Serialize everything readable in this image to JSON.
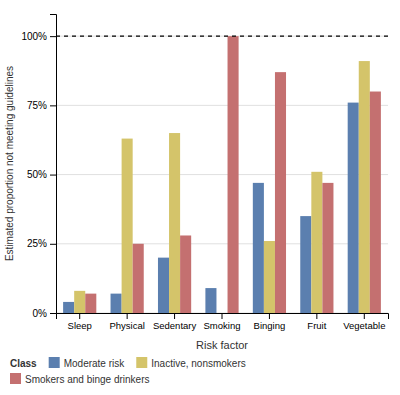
{
  "chart_data": {
    "type": "bar",
    "xlabel": "Risk factor",
    "ylabel": "Estimated proportion not meeting guidelines",
    "legend_title": "Class",
    "categories": [
      "Sleep",
      "Physical",
      "Sedentary",
      "Smoking",
      "Binging",
      "Fruit",
      "Vegetable"
    ],
    "series": [
      {
        "name": "Moderate risk",
        "color": "#5b7faf",
        "values": [
          0.04,
          0.07,
          0.2,
          0.09,
          0.47,
          0.35,
          0.76
        ]
      },
      {
        "name": "Inactive, nonsmokers",
        "color": "#d4c46a",
        "values": [
          0.08,
          0.63,
          0.65,
          0.0,
          0.26,
          0.51,
          0.91
        ]
      },
      {
        "name": "Smokers and binge drinkers",
        "color": "#c47070",
        "values": [
          0.07,
          0.25,
          0.28,
          1.0,
          0.87,
          0.47,
          0.8
        ]
      }
    ],
    "ylim": [
      0,
      1.08
    ],
    "yticks": [
      {
        "value": 0,
        "label": "0%"
      },
      {
        "value": 0.25,
        "label": "25%"
      },
      {
        "value": 0.5,
        "label": "50%"
      },
      {
        "value": 0.75,
        "label": "75%"
      },
      {
        "value": 1.0,
        "label": "100%"
      }
    ],
    "hlines": [
      {
        "value": 1.0,
        "line_style": "dashed"
      }
    ],
    "grid": true,
    "legend": "bottom"
  }
}
